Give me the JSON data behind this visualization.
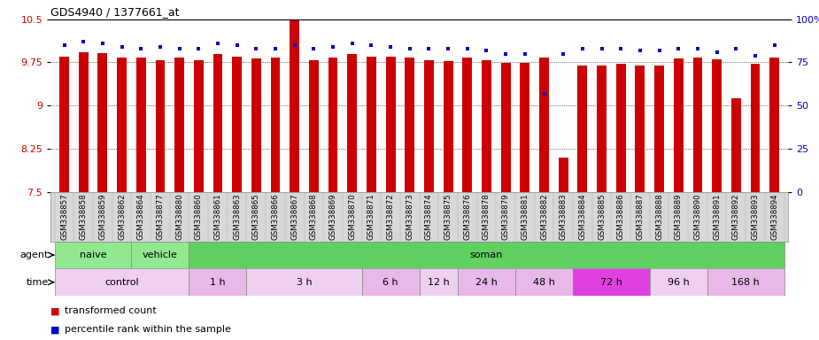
{
  "title": "GDS4940 / 1377661_at",
  "samples": [
    "GSM338857",
    "GSM338858",
    "GSM338859",
    "GSM338862",
    "GSM338864",
    "GSM338877",
    "GSM338880",
    "GSM338860",
    "GSM338861",
    "GSM338863",
    "GSM338865",
    "GSM338866",
    "GSM338867",
    "GSM338868",
    "GSM338869",
    "GSM338870",
    "GSM338871",
    "GSM338872",
    "GSM338873",
    "GSM338874",
    "GSM338875",
    "GSM338876",
    "GSM338878",
    "GSM338879",
    "GSM338881",
    "GSM338882",
    "GSM338883",
    "GSM338884",
    "GSM338885",
    "GSM338886",
    "GSM338887",
    "GSM338888",
    "GSM338889",
    "GSM338890",
    "GSM338891",
    "GSM338892",
    "GSM338893",
    "GSM338894"
  ],
  "bar_values": [
    9.85,
    9.93,
    9.91,
    9.84,
    9.84,
    9.79,
    9.83,
    9.79,
    9.9,
    9.85,
    9.82,
    9.83,
    10.49,
    9.79,
    9.84,
    9.89,
    9.85,
    9.85,
    9.84,
    9.79,
    9.77,
    9.84,
    9.79,
    9.74,
    9.74,
    9.84,
    8.1,
    9.7,
    9.7,
    9.73,
    9.69,
    9.7,
    9.82,
    9.83,
    9.8,
    9.12,
    9.73,
    9.83
  ],
  "percentile_values": [
    85,
    87,
    86,
    84,
    83,
    84,
    83,
    83,
    86,
    85,
    83,
    83,
    85,
    83,
    84,
    86,
    85,
    84,
    83,
    83,
    83,
    83,
    82,
    80,
    80,
    57,
    80,
    83,
    83,
    83,
    82,
    82,
    83,
    83,
    81,
    83,
    79,
    85
  ],
  "bar_baseline": 7.5,
  "ylim_left": [
    7.5,
    10.5
  ],
  "ylim_right": [
    0,
    100
  ],
  "yticks_left": [
    7.5,
    8.25,
    9.0,
    9.75,
    10.5
  ],
  "yticks_left_labels": [
    "7.5",
    "8.25",
    "9",
    "9.75",
    "10.5"
  ],
  "yticks_right": [
    0,
    25,
    50,
    75,
    100
  ],
  "yticks_right_labels": [
    "0",
    "25",
    "50",
    "75",
    "100%"
  ],
  "bar_color": "#cc0000",
  "dot_color": "#0000cc",
  "agent_groups": [
    {
      "label": "naive",
      "start": 0,
      "end": 4,
      "color": "#90e890"
    },
    {
      "label": "vehicle",
      "start": 4,
      "end": 7,
      "color": "#90e890"
    },
    {
      "label": "soman",
      "start": 7,
      "end": 38,
      "color": "#60d060"
    }
  ],
  "time_groups": [
    {
      "label": "control",
      "start": 0,
      "end": 7,
      "color": "#f0d0f0"
    },
    {
      "label": "1 h",
      "start": 7,
      "end": 10,
      "color": "#e8b8e8"
    },
    {
      "label": "3 h",
      "start": 10,
      "end": 16,
      "color": "#f0d0f0"
    },
    {
      "label": "6 h",
      "start": 16,
      "end": 19,
      "color": "#e8b8e8"
    },
    {
      "label": "12 h",
      "start": 19,
      "end": 21,
      "color": "#f0d0f0"
    },
    {
      "label": "24 h",
      "start": 21,
      "end": 24,
      "color": "#e8b8e8"
    },
    {
      "label": "48 h",
      "start": 24,
      "end": 27,
      "color": "#e8b8e8"
    },
    {
      "label": "72 h",
      "start": 27,
      "end": 31,
      "color": "#e040e0"
    },
    {
      "label": "96 h",
      "start": 31,
      "end": 34,
      "color": "#f0d0f0"
    },
    {
      "label": "168 h",
      "start": 34,
      "end": 38,
      "color": "#e8b8e8"
    }
  ],
  "legend_bar_label": "transformed count",
  "legend_dot_label": "percentile rank within the sample",
  "xlabels_bg": "#d8d8d8",
  "agent_border_color": "#888888",
  "time_border_color": "#888888"
}
